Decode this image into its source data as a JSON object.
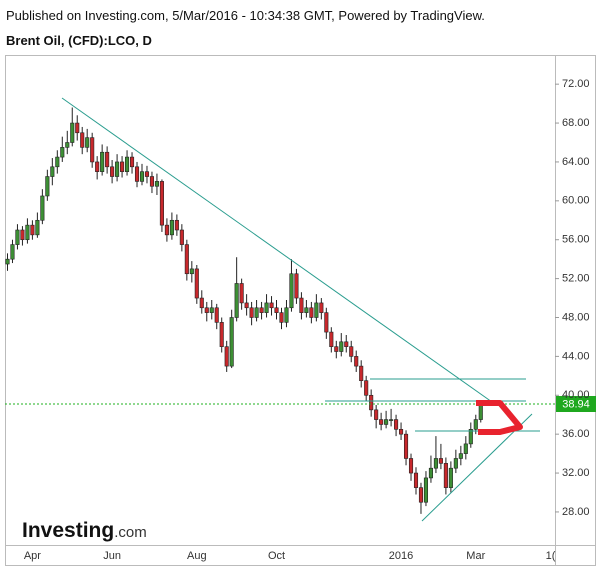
{
  "chart_data": {
    "type": "candlestick",
    "source": "Published on Investing.com, 5/Mar/2016 - 10:34:38 GMT, Powered by TradingView.",
    "title": "Brent Oil, (CFD):LCO, D",
    "logo": [
      "Investing",
      ".com"
    ],
    "up_color": "#3d8f35",
    "down_color": "#c8282c",
    "ylim": [
      24.6,
      75
    ],
    "yticks": [
      {
        "value": 28,
        "label": "28.00"
      },
      {
        "value": 32,
        "label": "32.00"
      },
      {
        "value": 36,
        "label": "36.00"
      },
      {
        "value": 40,
        "label": "40.00"
      },
      {
        "value": 44,
        "label": "44.00"
      },
      {
        "value": 48,
        "label": "48.00"
      },
      {
        "value": 52,
        "label": "52.00"
      },
      {
        "value": 56,
        "label": "56.00"
      },
      {
        "value": 60,
        "label": "60.00"
      },
      {
        "value": 64,
        "label": "64.00"
      },
      {
        "value": 68,
        "label": "68.00"
      },
      {
        "value": 72,
        "label": "72.00"
      }
    ],
    "categories": [
      null,
      null,
      null,
      null,
      null,
      "Apr",
      null,
      null,
      null,
      null,
      null,
      null,
      null,
      null,
      null,
      null,
      null,
      null,
      null,
      null,
      null,
      "Jun",
      null,
      null,
      null,
      null,
      null,
      null,
      null,
      null,
      null,
      null,
      null,
      null,
      null,
      null,
      null,
      null,
      "Aug",
      null,
      null,
      null,
      null,
      null,
      null,
      null,
      null,
      null,
      null,
      null,
      null,
      null,
      null,
      null,
      "Oct",
      null,
      null,
      null,
      null,
      null,
      null,
      null,
      null,
      null,
      null,
      null,
      null,
      null,
      null,
      null,
      null,
      null,
      null,
      null,
      null,
      null,
      null,
      null,
      null,
      "2016",
      null,
      null,
      null,
      null,
      null,
      null,
      null,
      null,
      null,
      null,
      null,
      null,
      null,
      null,
      "Mar",
      null,
      null,
      null,
      null,
      null,
      null,
      null,
      null,
      null,
      null,
      null,
      null,
      null,
      null,
      "1("
    ],
    "series": [
      {
        "values": [
          [
            53.5,
            54.6,
            52.8,
            54.0
          ],
          [
            54.0,
            56.0,
            53.6,
            55.5
          ],
          [
            55.5,
            57.6,
            55.0,
            57.0
          ],
          [
            57.0,
            57.4,
            55.4,
            56.0
          ],
          [
            56.0,
            58.2,
            55.6,
            57.5
          ],
          [
            57.5,
            58.0,
            56.0,
            56.5
          ],
          [
            56.5,
            58.8,
            56.2,
            58.0
          ],
          [
            58.0,
            61.2,
            57.6,
            60.5
          ],
          [
            60.5,
            63.2,
            60.0,
            62.5
          ],
          [
            62.5,
            64.4,
            61.6,
            63.5
          ],
          [
            63.5,
            65.2,
            62.8,
            64.5
          ],
          [
            64.5,
            66.6,
            64.0,
            65.5
          ],
          [
            65.5,
            67.2,
            64.8,
            66.0
          ],
          [
            66.0,
            69.6,
            65.6,
            68.0
          ],
          [
            68.0,
            68.8,
            66.2,
            67.0
          ],
          [
            67.0,
            67.6,
            64.8,
            65.5
          ],
          [
            65.5,
            67.4,
            65.0,
            66.5
          ],
          [
            66.5,
            67.0,
            63.4,
            64.0
          ],
          [
            64.0,
            64.6,
            62.2,
            63.0
          ],
          [
            63.0,
            65.8,
            62.6,
            65.0
          ],
          [
            65.0,
            65.6,
            62.8,
            63.5
          ],
          [
            63.5,
            64.2,
            61.8,
            62.5
          ],
          [
            62.5,
            64.8,
            62.0,
            64.0
          ],
          [
            64.0,
            64.6,
            62.4,
            63.0
          ],
          [
            63.0,
            65.2,
            62.6,
            64.5
          ],
          [
            64.5,
            65.0,
            62.8,
            63.5
          ],
          [
            63.5,
            64.0,
            61.4,
            62.0
          ],
          [
            62.0,
            63.8,
            61.6,
            63.0
          ],
          [
            63.0,
            63.6,
            61.8,
            62.5
          ],
          [
            62.5,
            63.0,
            60.8,
            61.5
          ],
          [
            61.5,
            62.8,
            60.6,
            62.0
          ],
          [
            62.0,
            62.2,
            56.8,
            57.5
          ],
          [
            57.5,
            58.2,
            55.8,
            56.5
          ],
          [
            56.5,
            58.8,
            56.0,
            58.0
          ],
          [
            58.0,
            58.6,
            56.4,
            57.0
          ],
          [
            57.0,
            57.6,
            54.8,
            55.5
          ],
          [
            55.5,
            56.0,
            51.8,
            52.5
          ],
          [
            52.5,
            53.8,
            51.6,
            53.0
          ],
          [
            53.0,
            53.4,
            49.4,
            50.0
          ],
          [
            50.0,
            50.8,
            48.4,
            49.0
          ],
          [
            49.0,
            49.6,
            47.6,
            48.5
          ],
          [
            48.5,
            49.8,
            47.8,
            49.0
          ],
          [
            49.0,
            49.4,
            46.8,
            47.5
          ],
          [
            47.5,
            48.0,
            44.4,
            45.0
          ],
          [
            45.0,
            45.6,
            42.4,
            43.0
          ],
          [
            43.0,
            48.8,
            42.8,
            48.0
          ],
          [
            48.0,
            54.2,
            47.6,
            51.5
          ],
          [
            51.5,
            52.0,
            48.8,
            49.5
          ],
          [
            49.5,
            50.4,
            48.2,
            49.0
          ],
          [
            49.0,
            49.6,
            47.2,
            48.0
          ],
          [
            48.0,
            49.8,
            47.6,
            49.0
          ],
          [
            49.0,
            49.6,
            47.8,
            48.5
          ],
          [
            48.5,
            50.4,
            48.0,
            49.5
          ],
          [
            49.5,
            50.2,
            48.2,
            49.0
          ],
          [
            49.0,
            49.8,
            47.8,
            48.5
          ],
          [
            48.5,
            49.0,
            46.8,
            47.5
          ],
          [
            47.5,
            49.8,
            47.0,
            49.0
          ],
          [
            49.0,
            54.0,
            48.6,
            52.5
          ],
          [
            52.5,
            53.0,
            49.4,
            50.0
          ],
          [
            50.0,
            50.6,
            47.8,
            48.5
          ],
          [
            48.5,
            49.8,
            48.0,
            49.0
          ],
          [
            49.0,
            49.6,
            47.4,
            48.0
          ],
          [
            48.0,
            50.4,
            47.6,
            49.5
          ],
          [
            49.5,
            50.0,
            47.8,
            48.5
          ],
          [
            48.5,
            49.0,
            45.8,
            46.5
          ],
          [
            46.5,
            47.0,
            44.4,
            45.0
          ],
          [
            45.0,
            45.6,
            43.8,
            44.5
          ],
          [
            44.5,
            46.4,
            44.0,
            45.5
          ],
          [
            45.5,
            46.2,
            44.4,
            45.0
          ],
          [
            45.0,
            45.6,
            43.4,
            44.0
          ],
          [
            44.0,
            44.6,
            42.4,
            43.0
          ],
          [
            43.0,
            43.6,
            40.8,
            41.5
          ],
          [
            41.5,
            42.0,
            39.4,
            40.0
          ],
          [
            40.0,
            40.6,
            37.8,
            38.5
          ],
          [
            38.5,
            39.0,
            36.6,
            37.5
          ],
          [
            37.5,
            38.2,
            36.4,
            37.0
          ],
          [
            37.0,
            38.4,
            36.6,
            37.5
          ],
          [
            37.5,
            38.6,
            36.8,
            37.5
          ],
          [
            37.5,
            38.0,
            35.8,
            36.5
          ],
          [
            36.5,
            37.2,
            35.4,
            36.0
          ],
          [
            36.0,
            36.4,
            32.8,
            33.5
          ],
          [
            33.5,
            34.0,
            31.2,
            32.0
          ],
          [
            32.0,
            32.6,
            29.8,
            30.5
          ],
          [
            30.5,
            31.0,
            27.8,
            29.0
          ],
          [
            29.0,
            32.2,
            28.6,
            31.5
          ],
          [
            31.5,
            33.8,
            31.0,
            32.5
          ],
          [
            32.5,
            35.8,
            32.0,
            33.5
          ],
          [
            33.5,
            35.0,
            32.4,
            33.0
          ],
          [
            33.0,
            33.6,
            29.8,
            30.5
          ],
          [
            30.5,
            33.2,
            30.0,
            32.5
          ],
          [
            32.5,
            34.4,
            32.0,
            33.5
          ],
          [
            33.5,
            34.8,
            32.8,
            34.0
          ],
          [
            34.0,
            35.8,
            33.4,
            35.0
          ],
          [
            35.0,
            37.2,
            34.6,
            36.5
          ],
          [
            36.5,
            38.0,
            36.0,
            37.5
          ],
          [
            37.5,
            39.2,
            37.2,
            38.94
          ],
          null,
          null,
          null,
          null,
          null,
          null,
          null,
          null,
          null,
          null,
          null,
          null,
          null,
          null
        ]
      }
    ]
  }
}
